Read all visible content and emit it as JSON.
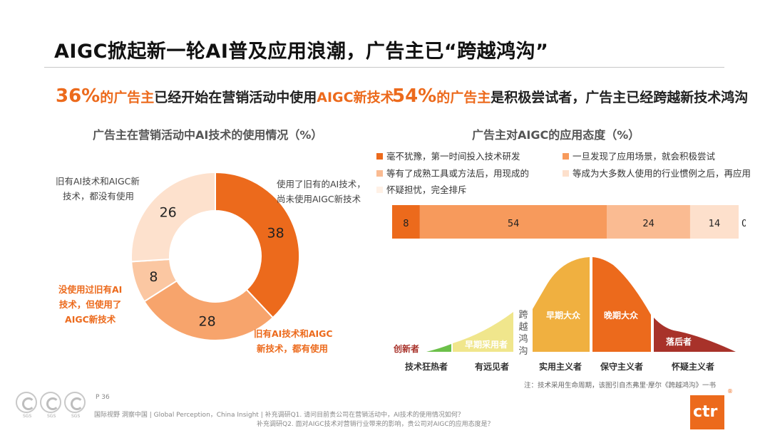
{
  "title": "AIGC掀起新一轮AI普及应用浪潮，广告主已“跨越鸿沟”",
  "left_headline": {
    "pct": "36%",
    "mid": "的广告主",
    "rest": "已经开始在营销活动中使用",
    "highlight": "AIGC新技术"
  },
  "right_headline": {
    "pct": "54%",
    "mid": "的广告主",
    "rest": "是积极尝试者，广告主已经跨越新技术鸿沟"
  },
  "chart_data": [
    {
      "type": "pie",
      "title": "广告主在营销活动中AI技术的使用情况（%）",
      "categories": [
        "使用了旧有的AI技术，尚未使用AIGC新技术",
        "旧有AI技术和AIGC新技术，都有使用",
        "没使用过旧有AI技术，但使用了AIGC新技术",
        "旧有AI技术和AIGC新技术，都没有使用"
      ],
      "values": [
        38,
        28,
        8,
        26
      ],
      "colors": [
        "#ec6a1c",
        "#f7a46c",
        "#fbc7a2",
        "#fde1cd"
      ]
    },
    {
      "type": "bar",
      "title": "广告主对AIGC的应用态度（%）",
      "stacked": true,
      "series": [
        {
          "name": "毫不犹豫，第一时间投入技术研发",
          "values": [
            8
          ],
          "color": "#ec6a1c"
        },
        {
          "name": "一旦发现了应用场景，就会积极尝试",
          "values": [
            54
          ],
          "color": "#f79a5c"
        },
        {
          "name": "等有了成熟工具或方法后，用现成的",
          "values": [
            24
          ],
          "color": "#fabb92"
        },
        {
          "name": "等成为大多数人使用的行业惯例之后，再应用",
          "values": [
            14
          ],
          "color": "#fde0cc"
        },
        {
          "name": "怀疑担忧，完全排斥",
          "values": [
            0
          ],
          "color": "#fff1e6"
        }
      ]
    }
  ],
  "donut_annotations": {
    "top_left": "旧有AI技术和AIGC新技术，都没有使用",
    "top_left_lines": [
      "旧有AI技术和AIGC新",
      "技术，都没有使用"
    ],
    "top_right_lines": [
      "使用了旧有的AI技术，",
      "尚未使用AIGC新技术"
    ],
    "left_lines": [
      "没使用过旧有AI",
      "技术，但使用了",
      "AIGC新技术"
    ],
    "bottom_lines": [
      "旧有AI技术和AIGC",
      "新技术，都有使用"
    ]
  },
  "diffusion": {
    "segments": [
      {
        "label": "创新者",
        "color": "#6cc04a"
      },
      {
        "label": "早期采用者",
        "color": "#f0e68c"
      },
      {
        "label": "早期大众",
        "color": "#f0b040"
      },
      {
        "label": "晚期大众",
        "color": "#ec6a1c"
      },
      {
        "label": "落后者",
        "color": "#a8322a"
      }
    ],
    "gap_label": "跨越鸿沟",
    "bottom_labels": [
      "技术狂热者",
      "有远见者",
      "实用主义者",
      "保守主义者",
      "怀疑主义者"
    ]
  },
  "note": "注：技术采用生命周期，该图引自杰弗里·摩尔《跨越鸿沟》一书",
  "page": "P 36",
  "footer_line1": "国际视野  洞察中国 | Global Perception，China Insight | 补充调研Q1. 请问目前贵公司在营销活动中，AI技术的使用情况如何？",
  "footer_line2": "补充调研Q2. 面对AIGC技术对营销行业带来的影响，贵公司对AIGC的应用态度是？",
  "seal_labels": [
    "SGS",
    "SGS",
    "SGS"
  ],
  "logo": "ctr",
  "logo_mark": "®"
}
